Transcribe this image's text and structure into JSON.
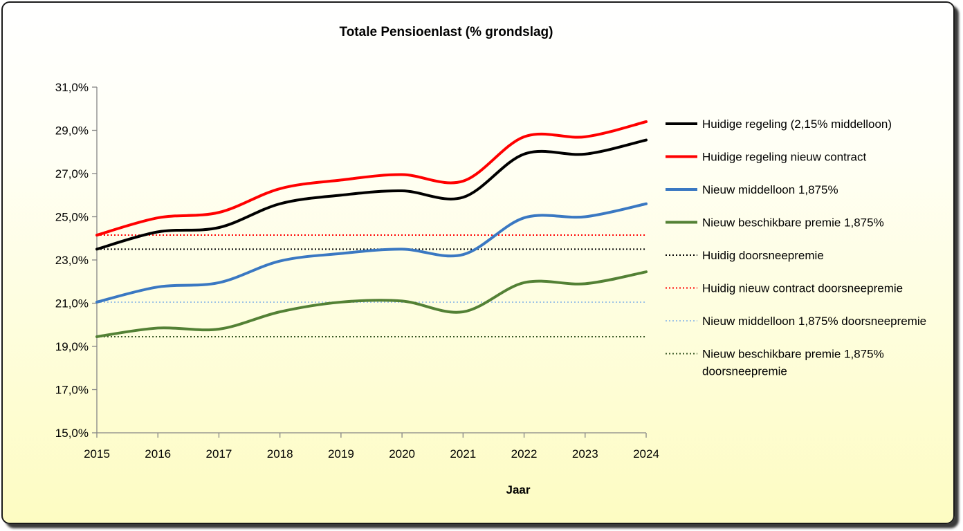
{
  "chart_data": {
    "type": "line",
    "title": "Totale Pensioenlast (% grondslag)",
    "xlabel": "Jaar",
    "ylabel": "",
    "x": [
      "2015",
      "2016",
      "2017",
      "2018",
      "2019",
      "2020",
      "2021",
      "2022",
      "2023",
      "2024"
    ],
    "ylim": [
      15.0,
      31.0
    ],
    "yticks": [
      "15,0%",
      "17,0%",
      "19,0%",
      "21,0%",
      "23,0%",
      "25,0%",
      "27,0%",
      "29,0%",
      "31,0%"
    ],
    "grid": false,
    "legend_position": "right",
    "series": [
      {
        "name": "Huidige regeling (2,15% middelloon)",
        "color": "#000000",
        "style": "solid",
        "values": [
          23.5,
          24.3,
          24.5,
          25.6,
          26.0,
          26.2,
          25.9,
          27.9,
          27.9,
          28.55
        ]
      },
      {
        "name": "Huidige regeling nieuw contract",
        "color": "#ff0000",
        "style": "solid",
        "values": [
          24.15,
          24.95,
          25.2,
          26.3,
          26.7,
          26.95,
          26.65,
          28.7,
          28.7,
          29.4
        ]
      },
      {
        "name": "Nieuw middelloon 1,875%",
        "color": "#3a78c2",
        "style": "solid",
        "values": [
          21.05,
          21.75,
          21.95,
          22.95,
          23.3,
          23.5,
          23.25,
          24.95,
          25.0,
          25.6
        ]
      },
      {
        "name": "Nieuw beschikbare premie 1,875%",
        "color": "#538135",
        "style": "solid",
        "values": [
          19.45,
          19.85,
          19.8,
          20.6,
          21.05,
          21.1,
          20.6,
          21.95,
          21.9,
          22.45
        ]
      },
      {
        "name": "Huidig doorsneepremie",
        "color": "#000000",
        "style": "dotted",
        "values": [
          23.5,
          23.5,
          23.5,
          23.5,
          23.5,
          23.5,
          23.5,
          23.5,
          23.5,
          23.5
        ]
      },
      {
        "name": "Huidig nieuw contract doorsneepremie",
        "color": "#ff0000",
        "style": "dotted",
        "values": [
          24.15,
          24.15,
          24.15,
          24.15,
          24.15,
          24.15,
          24.15,
          24.15,
          24.15,
          24.15
        ]
      },
      {
        "name": "Nieuw middelloon 1,875% doorsneepremie",
        "color": "#9dc3e6",
        "style": "dotted",
        "values": [
          21.05,
          21.05,
          21.05,
          21.05,
          21.05,
          21.05,
          21.05,
          21.05,
          21.05,
          21.05
        ]
      },
      {
        "name": "Nieuw beschikbare premie 1,875% doorsneepremie",
        "color": "#375623",
        "style": "dotted",
        "legend_lines": [
          "Nieuw beschikbare premie 1,875%",
          "doorsneepremie"
        ],
        "values": [
          19.45,
          19.45,
          19.45,
          19.45,
          19.45,
          19.45,
          19.45,
          19.45,
          19.45,
          19.45
        ]
      }
    ]
  }
}
